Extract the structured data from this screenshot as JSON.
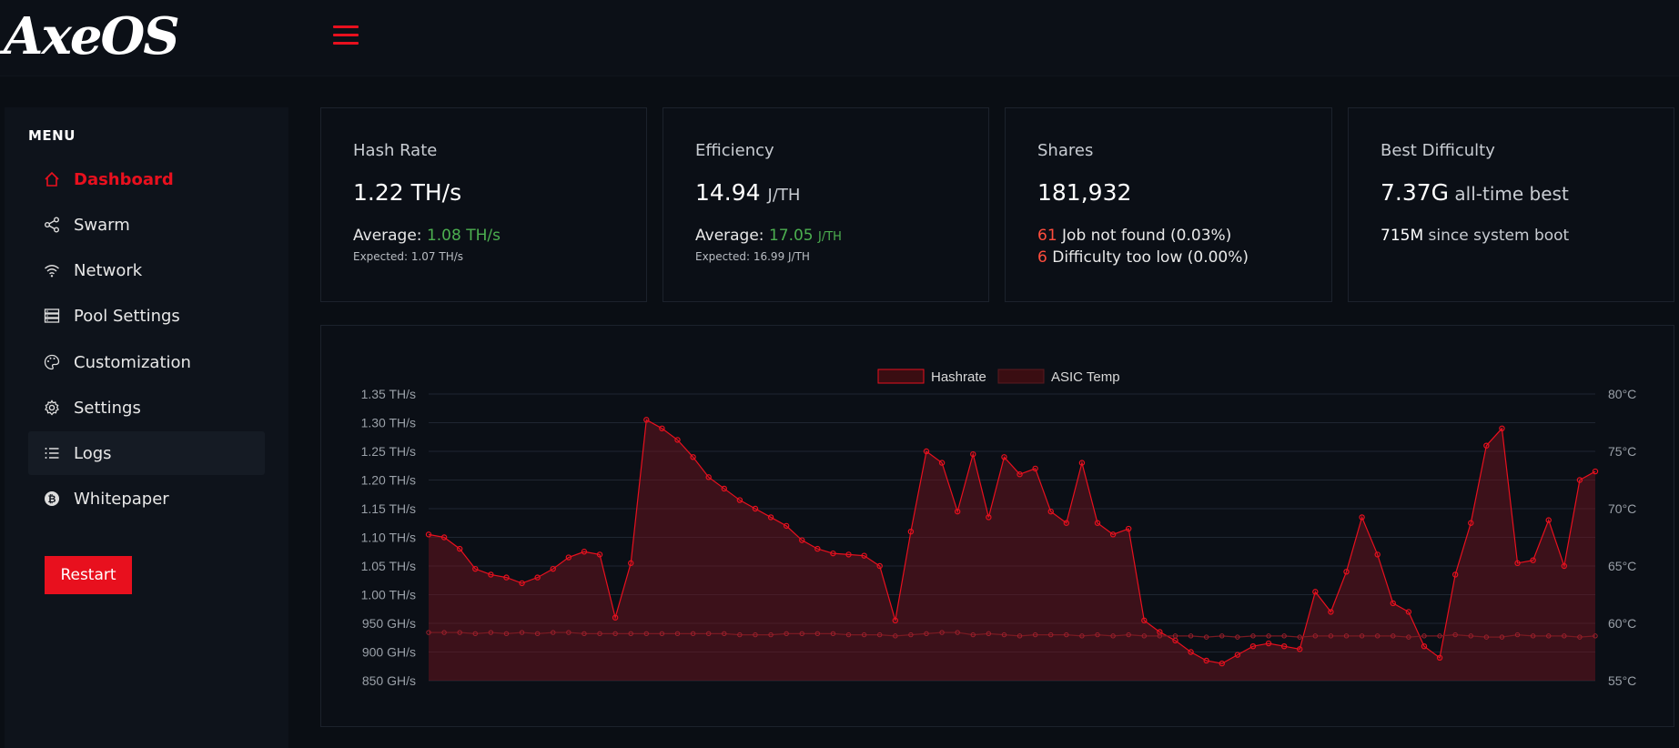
{
  "header": {
    "logo": "AxeOS"
  },
  "sidebar": {
    "title": "MENU",
    "items": [
      {
        "label": "Dashboard",
        "icon": "home-icon"
      },
      {
        "label": "Swarm",
        "icon": "share-icon"
      },
      {
        "label": "Network",
        "icon": "wifi-icon"
      },
      {
        "label": "Pool Settings",
        "icon": "server-icon"
      },
      {
        "label": "Customization",
        "icon": "palette-icon"
      },
      {
        "label": "Settings",
        "icon": "gear-icon"
      },
      {
        "label": "Logs",
        "icon": "list-icon"
      },
      {
        "label": "Whitepaper",
        "icon": "bitcoin-icon"
      }
    ],
    "restart_label": "Restart"
  },
  "cards": {
    "hashrate": {
      "title": "Hash Rate",
      "value": "1.22 TH/s",
      "average_label": "Average: ",
      "average_value": "1.08 TH/s",
      "expected": "Expected: 1.07 TH/s"
    },
    "efficiency": {
      "title": "Efficiency",
      "value": "14.94",
      "unit": "J/TH",
      "average_label": "Average: ",
      "average_value": "17.05",
      "average_unit": "J/TH",
      "expected": "Expected: 16.99 J/TH"
    },
    "shares": {
      "title": "Shares",
      "value": "181,932",
      "rej1_count": "61",
      "rej1_text": " Job not found (0.03%)",
      "rej2_count": "6",
      "rej2_text": " Difficulty too low (0.00%)"
    },
    "difficulty": {
      "title": "Best Difficulty",
      "value": "7.37G",
      "value_suffix": " all-time best",
      "boot_value": "715M",
      "boot_suffix": " since system boot"
    }
  },
  "colors": {
    "accent": "#e8101e",
    "green": "#4caf50",
    "reject": "#ff4d3d"
  },
  "chart_data": {
    "type": "line",
    "legend": [
      "Hashrate",
      "ASIC Temp"
    ],
    "legend_position": "top-center",
    "y_left": {
      "ticks": [
        "1.35 TH/s",
        "1.30 TH/s",
        "1.25 TH/s",
        "1.20 TH/s",
        "1.15 TH/s",
        "1.10 TH/s",
        "1.05 TH/s",
        "1.00 TH/s",
        "950 GH/s",
        "900 GH/s",
        "850 GH/s"
      ],
      "min": 850,
      "max": 1350,
      "unit": "GH/s"
    },
    "y_right": {
      "ticks": [
        "80°C",
        "75°C",
        "70°C",
        "65°C",
        "60°C",
        "55°C"
      ],
      "min": 55,
      "max": 80
    },
    "grid": true,
    "series": [
      {
        "name": "Hashrate",
        "values": [
          1105,
          1100,
          1080,
          1045,
          1035,
          1030,
          1020,
          1030,
          1045,
          1065,
          1075,
          1070,
          960,
          1055,
          1305,
          1290,
          1270,
          1240,
          1205,
          1185,
          1165,
          1150,
          1135,
          1120,
          1095,
          1080,
          1072,
          1070,
          1068,
          1050,
          955,
          1110,
          1250,
          1230,
          1145,
          1245,
          1135,
          1240,
          1210,
          1220,
          1145,
          1125,
          1230,
          1125,
          1105,
          1115,
          955,
          935,
          920,
          900,
          885,
          880,
          895,
          910,
          915,
          910,
          905,
          1005,
          970,
          1040,
          1135,
          1070,
          985,
          970,
          910,
          890,
          1035,
          1125,
          1260,
          1290,
          1055,
          1060,
          1130,
          1050,
          1200,
          1215
        ]
      },
      {
        "name": "ASIC Temp",
        "values": [
          59.2,
          59.2,
          59.2,
          59.1,
          59.2,
          59.1,
          59.2,
          59.1,
          59.2,
          59.2,
          59.1,
          59.1,
          59.1,
          59.1,
          59.1,
          59.1,
          59.1,
          59.1,
          59.1,
          59.1,
          59.0,
          59.0,
          59.0,
          59.1,
          59.1,
          59.1,
          59.1,
          59.0,
          59.0,
          59.0,
          58.9,
          59.0,
          59.1,
          59.2,
          59.2,
          59.0,
          59.1,
          59.0,
          58.9,
          59.0,
          59.0,
          59.0,
          58.9,
          59.0,
          58.9,
          59.0,
          58.9,
          58.9,
          58.9,
          58.9,
          58.8,
          58.9,
          58.8,
          58.9,
          58.9,
          58.9,
          58.8,
          58.9,
          58.9,
          58.9,
          58.9,
          58.9,
          58.9,
          58.8,
          58.9,
          58.9,
          59.0,
          58.9,
          58.8,
          58.8,
          59.0,
          58.9,
          58.9,
          58.9,
          58.8,
          58.9
        ]
      }
    ]
  }
}
